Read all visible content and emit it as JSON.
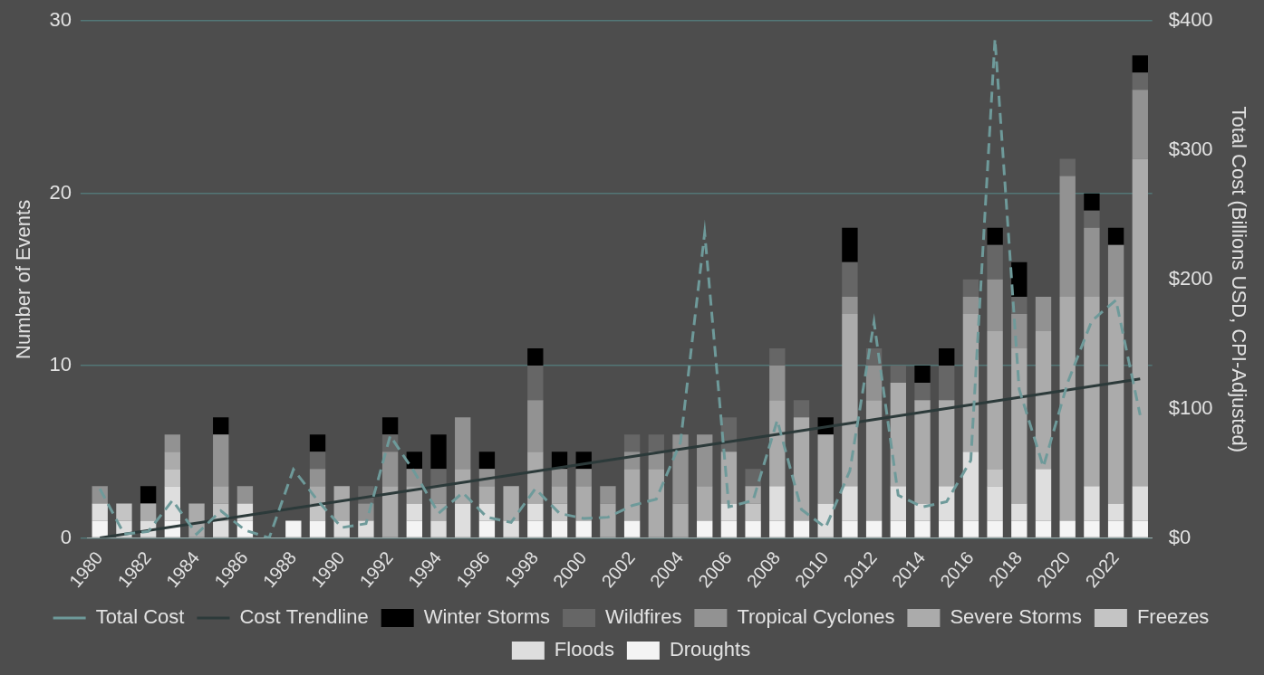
{
  "chart_data": {
    "type": "bar",
    "stacked": true,
    "grid": true,
    "legend": "bottom",
    "y_label": "Number of Events",
    "y2_label": "Total Cost (Billions USD, CPI-Adjusted)",
    "categories": [
      "1980",
      null,
      "1982",
      null,
      "1984",
      null,
      "1986",
      null,
      "1988",
      null,
      "1990",
      null,
      "1992",
      null,
      "1994",
      null,
      "1996",
      null,
      "1998",
      null,
      "2000",
      null,
      "2002",
      null,
      "2004",
      null,
      "2006",
      null,
      "2008",
      null,
      "2010",
      null,
      "2012",
      null,
      "2014",
      null,
      "2016",
      null,
      "2018",
      null,
      "2020",
      null,
      "2022",
      null
    ],
    "ylim": [
      0,
      30
    ],
    "yticks": [
      0,
      10,
      20,
      30
    ],
    "y2lim": [
      0,
      400
    ],
    "y2ticks": [
      {
        "value": 0,
        "label": "$0"
      },
      {
        "value": 100,
        "label": "$100"
      },
      {
        "value": 200,
        "label": "$200"
      },
      {
        "value": 300,
        "label": "$300"
      },
      {
        "value": 400,
        "label": "$400"
      }
    ],
    "series": [
      {
        "name": "Droughts",
        "color": "#f4f4f4",
        "values": [
          1,
          0,
          0,
          1,
          0,
          0,
          1,
          0,
          1,
          1,
          0,
          0,
          0,
          1,
          0,
          0,
          1,
          0,
          1,
          1,
          1,
          0,
          1,
          0,
          0,
          1,
          1,
          1,
          1,
          1,
          0,
          1,
          1,
          1,
          1,
          1,
          1,
          1,
          1,
          1,
          1,
          1,
          1,
          1
        ]
      },
      {
        "name": "Floods",
        "color": "#dedede",
        "values": [
          1,
          1,
          1,
          2,
          0,
          1,
          1,
          0,
          0,
          0,
          1,
          1,
          0,
          1,
          1,
          2,
          1,
          1,
          1,
          0,
          0,
          0,
          0,
          0,
          0,
          0,
          1,
          0,
          2,
          0,
          2,
          2,
          0,
          2,
          1,
          2,
          4,
          2,
          1,
          3,
          0,
          2,
          1,
          2
        ]
      },
      {
        "name": "Freezes",
        "color": "#c4c4c4",
        "values": [
          0,
          1,
          0,
          1,
          0,
          1,
          0,
          0,
          0,
          1,
          0,
          0,
          0,
          0,
          0,
          0,
          0,
          0,
          0,
          1,
          0,
          0,
          0,
          0,
          0,
          0,
          0,
          1,
          0,
          0,
          0,
          0,
          0,
          0,
          0,
          0,
          0,
          1,
          0,
          0,
          0,
          0,
          0,
          0
        ]
      },
      {
        "name": "Severe Storms",
        "color": "#ababab",
        "values": [
          0,
          0,
          1,
          1,
          2,
          1,
          0,
          0,
          0,
          1,
          2,
          0,
          3,
          1,
          1,
          2,
          1,
          2,
          3,
          1,
          2,
          2,
          3,
          4,
          2,
          2,
          3,
          1,
          5,
          6,
          4,
          10,
          7,
          6,
          6,
          5,
          8,
          8,
          9,
          8,
          13,
          11,
          12,
          19
        ]
      },
      {
        "name": "Tropical Cyclones",
        "color": "#929292",
        "values": [
          1,
          0,
          0,
          1,
          0,
          3,
          1,
          0,
          0,
          1,
          0,
          1,
          2,
          1,
          1,
          3,
          1,
          0,
          3,
          1,
          1,
          1,
          1,
          1,
          4,
          3,
          0,
          0,
          2,
          0,
          0,
          1,
          2,
          0,
          0,
          0,
          1,
          3,
          2,
          2,
          7,
          4,
          3,
          4
        ]
      },
      {
        "name": "Wildfires",
        "color": "#666666",
        "values": [
          0,
          0,
          0,
          0,
          0,
          0,
          0,
          0,
          0,
          1,
          0,
          1,
          1,
          0,
          1,
          0,
          0,
          0,
          2,
          0,
          0,
          0,
          1,
          1,
          0,
          0,
          2,
          1,
          1,
          1,
          0,
          2,
          1,
          1,
          1,
          2,
          1,
          2,
          1,
          0,
          1,
          1,
          0,
          1
        ]
      },
      {
        "name": "Winter Storms",
        "color": "#000000",
        "values": [
          0,
          0,
          1,
          0,
          0,
          1,
          0,
          0,
          0,
          1,
          0,
          0,
          1,
          1,
          2,
          0,
          1,
          0,
          1,
          1,
          1,
          0,
          0,
          0,
          0,
          0,
          0,
          0,
          0,
          0,
          1,
          2,
          0,
          0,
          1,
          1,
          0,
          1,
          2,
          0,
          0,
          1,
          1,
          1
        ]
      },
      {
        "name": "Total Cost",
        "type": "line",
        "axis": "y2",
        "line_style": "dashed",
        "color": "#6e9a9a",
        "values": [
          38,
          3,
          5,
          29,
          3,
          21,
          6,
          0,
          53,
          29,
          8,
          11,
          79,
          51,
          19,
          35,
          16,
          12,
          38,
          19,
          15,
          16,
          25,
          30,
          74,
          236,
          24,
          29,
          91,
          22,
          8,
          52,
          167,
          33,
          24,
          28,
          60,
          386,
          115,
          55,
          120,
          168,
          184,
          95
        ]
      },
      {
        "name": "Cost Trendline",
        "type": "line",
        "axis": "y2",
        "line_style": "solid",
        "color": "#2c3a3a",
        "values": [
          0,
          null,
          null,
          null,
          null,
          null,
          null,
          null,
          null,
          null,
          null,
          null,
          null,
          null,
          null,
          null,
          null,
          null,
          null,
          null,
          null,
          null,
          null,
          null,
          null,
          null,
          null,
          null,
          null,
          null,
          null,
          null,
          null,
          null,
          null,
          null,
          null,
          null,
          null,
          null,
          null,
          null,
          null,
          123
        ]
      }
    ]
  }
}
